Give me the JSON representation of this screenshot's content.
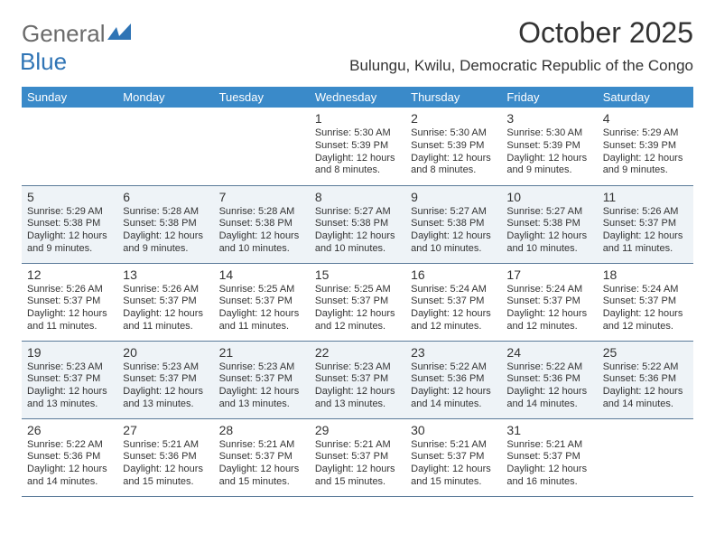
{
  "logo": {
    "textA": "General",
    "textB": "Blue"
  },
  "title": "October 2025",
  "location": "Bulungu, Kwilu, Democratic Republic of the Congo",
  "colors": {
    "header_bg": "#3a8ac9",
    "row_alt_bg": "#eef3f7",
    "rule": "#5a7a99",
    "logo_grey": "#6b6b6b",
    "logo_blue": "#2f74b5"
  },
  "dayHeaders": [
    "Sunday",
    "Monday",
    "Tuesday",
    "Wednesday",
    "Thursday",
    "Friday",
    "Saturday"
  ],
  "weeks": [
    [
      null,
      null,
      null,
      {
        "n": "1",
        "sr": "5:30 AM",
        "ss": "5:39 PM",
        "dl": "12 hours and 8 minutes."
      },
      {
        "n": "2",
        "sr": "5:30 AM",
        "ss": "5:39 PM",
        "dl": "12 hours and 8 minutes."
      },
      {
        "n": "3",
        "sr": "5:30 AM",
        "ss": "5:39 PM",
        "dl": "12 hours and 9 minutes."
      },
      {
        "n": "4",
        "sr": "5:29 AM",
        "ss": "5:39 PM",
        "dl": "12 hours and 9 minutes."
      }
    ],
    [
      {
        "n": "5",
        "sr": "5:29 AM",
        "ss": "5:38 PM",
        "dl": "12 hours and 9 minutes."
      },
      {
        "n": "6",
        "sr": "5:28 AM",
        "ss": "5:38 PM",
        "dl": "12 hours and 9 minutes."
      },
      {
        "n": "7",
        "sr": "5:28 AM",
        "ss": "5:38 PM",
        "dl": "12 hours and 10 minutes."
      },
      {
        "n": "8",
        "sr": "5:27 AM",
        "ss": "5:38 PM",
        "dl": "12 hours and 10 minutes."
      },
      {
        "n": "9",
        "sr": "5:27 AM",
        "ss": "5:38 PM",
        "dl": "12 hours and 10 minutes."
      },
      {
        "n": "10",
        "sr": "5:27 AM",
        "ss": "5:38 PM",
        "dl": "12 hours and 10 minutes."
      },
      {
        "n": "11",
        "sr": "5:26 AM",
        "ss": "5:37 PM",
        "dl": "12 hours and 11 minutes."
      }
    ],
    [
      {
        "n": "12",
        "sr": "5:26 AM",
        "ss": "5:37 PM",
        "dl": "12 hours and 11 minutes."
      },
      {
        "n": "13",
        "sr": "5:26 AM",
        "ss": "5:37 PM",
        "dl": "12 hours and 11 minutes."
      },
      {
        "n": "14",
        "sr": "5:25 AM",
        "ss": "5:37 PM",
        "dl": "12 hours and 11 minutes."
      },
      {
        "n": "15",
        "sr": "5:25 AM",
        "ss": "5:37 PM",
        "dl": "12 hours and 12 minutes."
      },
      {
        "n": "16",
        "sr": "5:24 AM",
        "ss": "5:37 PM",
        "dl": "12 hours and 12 minutes."
      },
      {
        "n": "17",
        "sr": "5:24 AM",
        "ss": "5:37 PM",
        "dl": "12 hours and 12 minutes."
      },
      {
        "n": "18",
        "sr": "5:24 AM",
        "ss": "5:37 PM",
        "dl": "12 hours and 12 minutes."
      }
    ],
    [
      {
        "n": "19",
        "sr": "5:23 AM",
        "ss": "5:37 PM",
        "dl": "12 hours and 13 minutes."
      },
      {
        "n": "20",
        "sr": "5:23 AM",
        "ss": "5:37 PM",
        "dl": "12 hours and 13 minutes."
      },
      {
        "n": "21",
        "sr": "5:23 AM",
        "ss": "5:37 PM",
        "dl": "12 hours and 13 minutes."
      },
      {
        "n": "22",
        "sr": "5:23 AM",
        "ss": "5:37 PM",
        "dl": "12 hours and 13 minutes."
      },
      {
        "n": "23",
        "sr": "5:22 AM",
        "ss": "5:36 PM",
        "dl": "12 hours and 14 minutes."
      },
      {
        "n": "24",
        "sr": "5:22 AM",
        "ss": "5:36 PM",
        "dl": "12 hours and 14 minutes."
      },
      {
        "n": "25",
        "sr": "5:22 AM",
        "ss": "5:36 PM",
        "dl": "12 hours and 14 minutes."
      }
    ],
    [
      {
        "n": "26",
        "sr": "5:22 AM",
        "ss": "5:36 PM",
        "dl": "12 hours and 14 minutes."
      },
      {
        "n": "27",
        "sr": "5:21 AM",
        "ss": "5:36 PM",
        "dl": "12 hours and 15 minutes."
      },
      {
        "n": "28",
        "sr": "5:21 AM",
        "ss": "5:37 PM",
        "dl": "12 hours and 15 minutes."
      },
      {
        "n": "29",
        "sr": "5:21 AM",
        "ss": "5:37 PM",
        "dl": "12 hours and 15 minutes."
      },
      {
        "n": "30",
        "sr": "5:21 AM",
        "ss": "5:37 PM",
        "dl": "12 hours and 15 minutes."
      },
      {
        "n": "31",
        "sr": "5:21 AM",
        "ss": "5:37 PM",
        "dl": "12 hours and 16 minutes."
      },
      null
    ]
  ],
  "labels": {
    "sunrise": "Sunrise:",
    "sunset": "Sunset:",
    "daylight": "Daylight:"
  }
}
